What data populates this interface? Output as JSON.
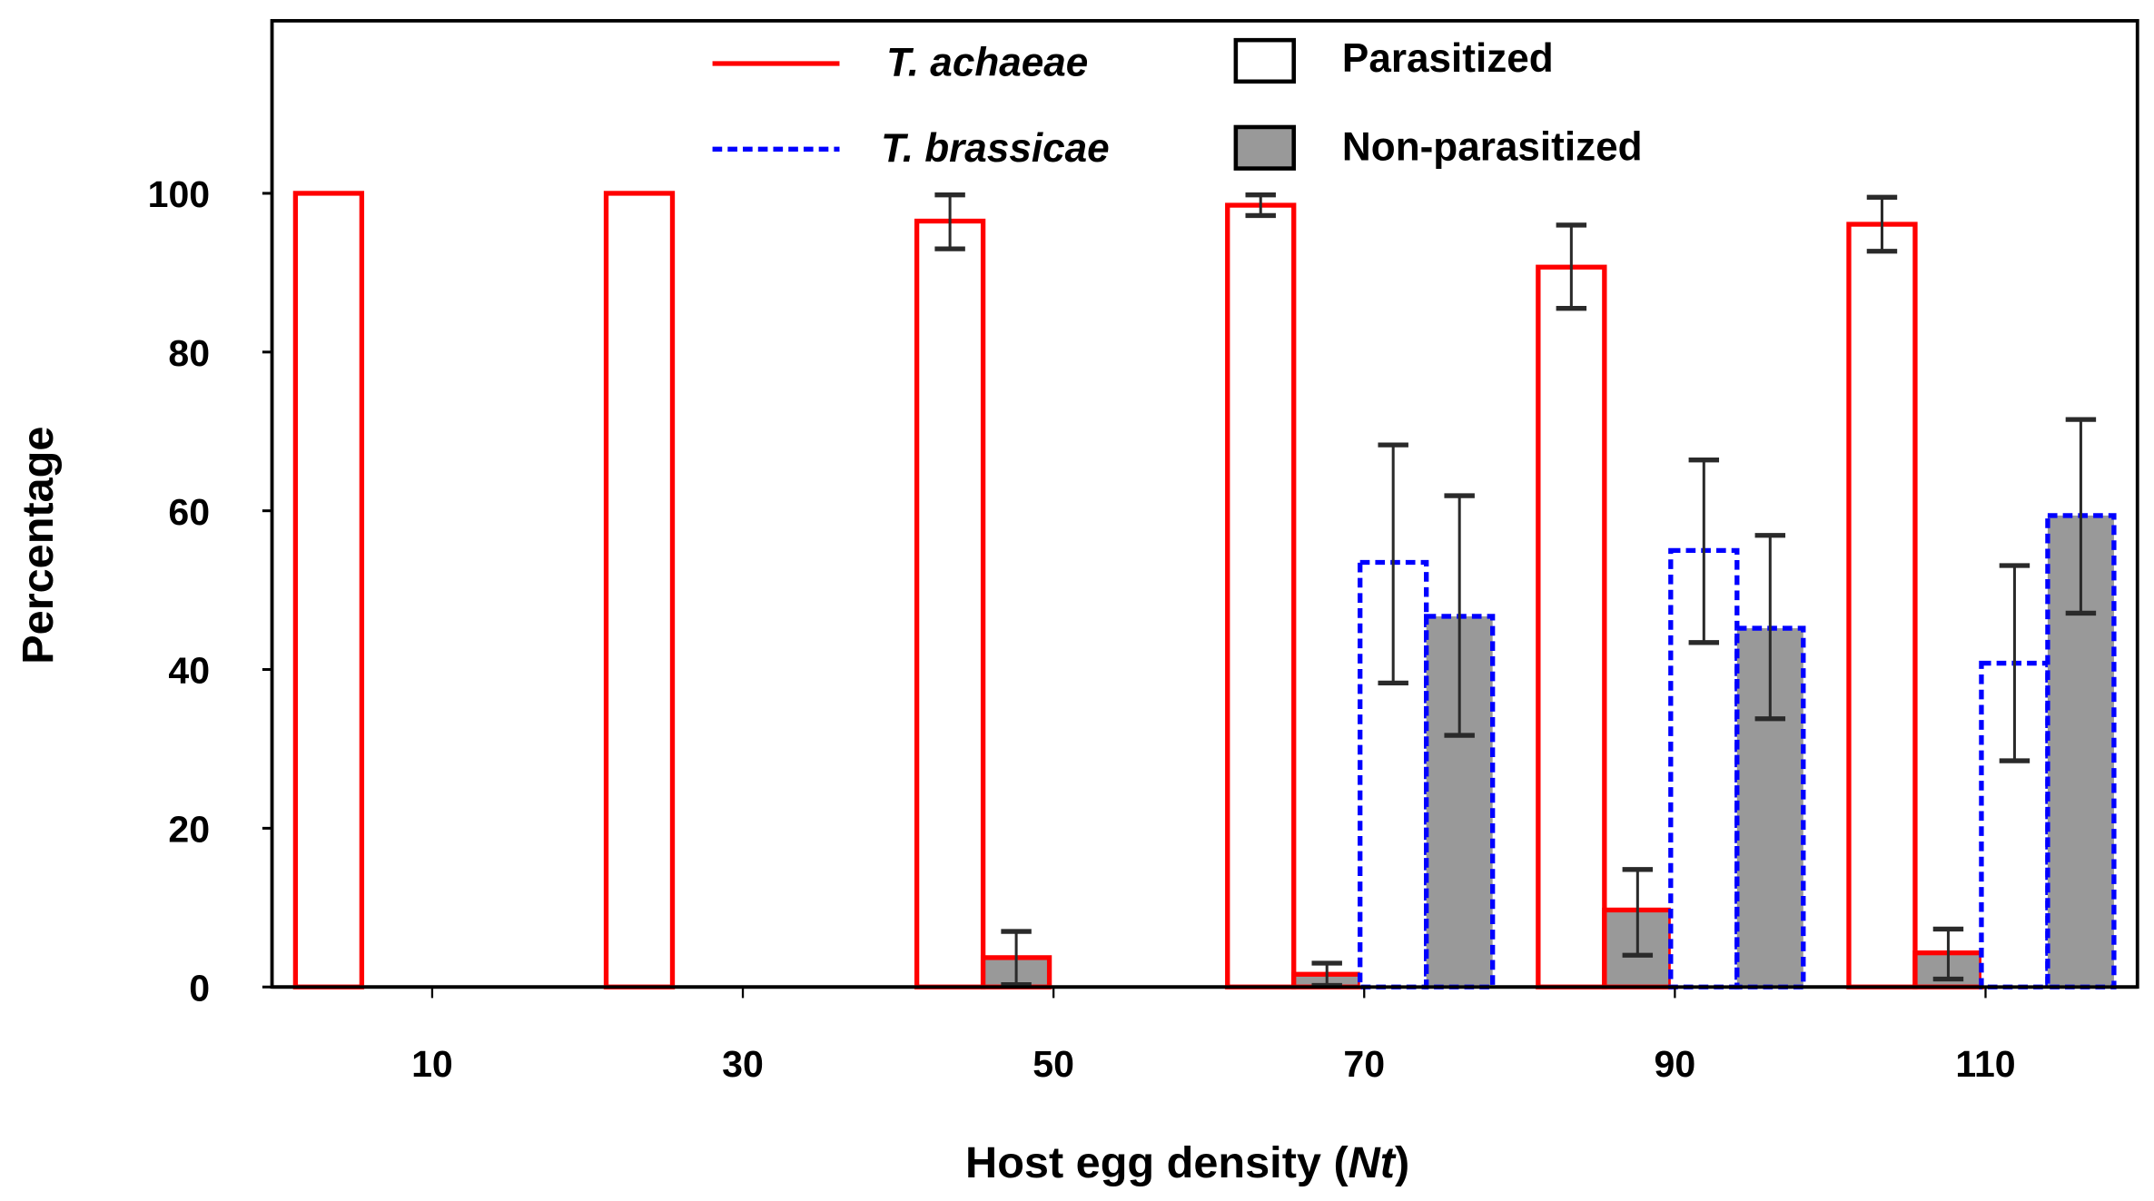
{
  "chart_data": {
    "type": "bar",
    "title": "",
    "xlabel": "Host egg density",
    "xlabel_italic_part": "Nt",
    "ylabel": "Percentage",
    "ylim": [
      0,
      100
    ],
    "yticks": [
      0,
      20,
      40,
      60,
      80,
      100
    ],
    "categories": [
      "10",
      "30",
      "50",
      "70",
      "90",
      "110"
    ],
    "grid": false,
    "legend": {
      "placement": "top",
      "species": [
        {
          "name": "T. achaeae",
          "color": "#ff0000",
          "line": "solid"
        },
        {
          "name": "T. brassicae",
          "color": "#0000ff",
          "line": "dashed"
        }
      ],
      "fills": [
        {
          "name": "Parasitized",
          "color": "#ffffff"
        },
        {
          "name": "Non-parasitized",
          "color": "#999999"
        }
      ]
    },
    "series": [
      {
        "name": "T. achaeae Parasitized",
        "species": 0,
        "fill": 0,
        "values": [
          100,
          100,
          96.5,
          98.5,
          90.7,
          96.1
        ],
        "err_low": [
          null,
          null,
          93.0,
          97.2,
          85.5,
          92.7
        ],
        "err_high": [
          null,
          null,
          99.8,
          99.8,
          96.0,
          99.5
        ]
      },
      {
        "name": "T. achaeae Non-parasitized",
        "species": 0,
        "fill": 1,
        "values": [
          0,
          0,
          3.7,
          1.6,
          9.7,
          4.3
        ],
        "err_low": [
          null,
          null,
          0.3,
          0.2,
          4.0,
          1.0
        ],
        "err_high": [
          null,
          null,
          7.0,
          3.0,
          14.8,
          7.3
        ]
      },
      {
        "name": "T. brassicae Parasitized",
        "species": 1,
        "fill": 0,
        "values": [
          0,
          0,
          0,
          53.5,
          55.0,
          40.8
        ],
        "err_low": [
          null,
          null,
          null,
          38.3,
          43.4,
          28.5
        ],
        "err_high": [
          null,
          null,
          null,
          68.3,
          66.4,
          53.1
        ]
      },
      {
        "name": "T. brassicae Non-parasitized",
        "species": 1,
        "fill": 1,
        "values": [
          0,
          0,
          0,
          46.7,
          45.2,
          59.4
        ],
        "err_low": [
          null,
          null,
          null,
          31.7,
          33.8,
          47.1
        ],
        "err_high": [
          null,
          null,
          null,
          61.9,
          56.9,
          71.5
        ]
      }
    ]
  }
}
